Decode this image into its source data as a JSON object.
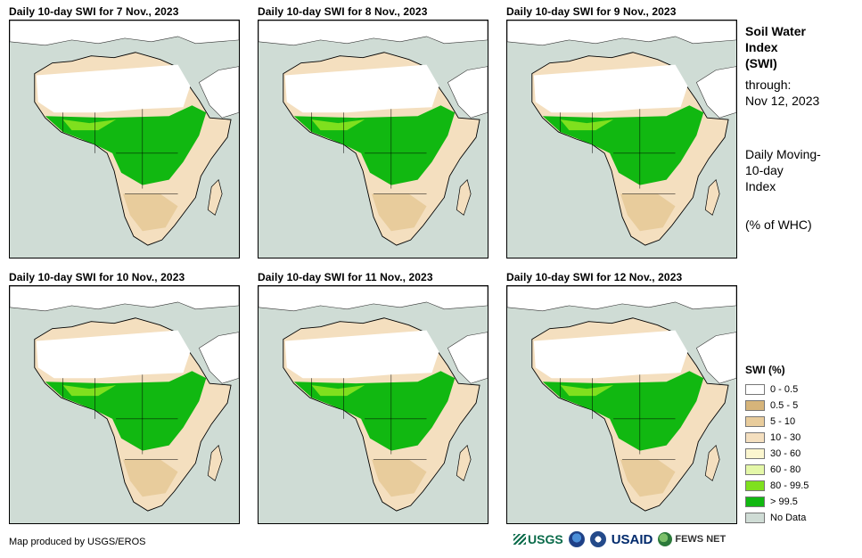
{
  "panels": [
    {
      "title": "Daily 10-day SWI for 7 Nov., 2023"
    },
    {
      "title": "Daily 10-day SWI for 8 Nov., 2023"
    },
    {
      "title": "Daily 10-day SWI for 9 Nov., 2023"
    },
    {
      "title": "Daily 10-day SWI for 10 Nov., 2023"
    },
    {
      "title": "Daily 10-day SWI for 11 Nov., 2023"
    },
    {
      "title": "Daily 10-day SWI for 12 Nov., 2023"
    }
  ],
  "side_info": {
    "title_line1": "Soil Water",
    "title_line2": "Index",
    "title_line3": "(SWI)",
    "through_label": "through:",
    "through_date": "Nov 12, 2023",
    "desc_line1": "Daily Moving-",
    "desc_line2": "10-day",
    "desc_line3": "Index",
    "units": "(% of WHC)"
  },
  "legend": {
    "title": "SWI (%)",
    "items": [
      {
        "label": "0 - 0.5",
        "color": "#ffffff"
      },
      {
        "label": "0.5 - 5",
        "color": "#d6b47a"
      },
      {
        "label": "5 - 10",
        "color": "#e8cc9c"
      },
      {
        "label": "10 - 30",
        "color": "#f4dfbf"
      },
      {
        "label": "30 - 60",
        "color": "#fbf6cf"
      },
      {
        "label": "60 - 80",
        "color": "#e4f7a8"
      },
      {
        "label": "80 - 99.5",
        "color": "#7fe01e"
      },
      {
        "label": "> 99.5",
        "color": "#11b811"
      },
      {
        "label": "No Data",
        "color": "#cfdcd5"
      }
    ]
  },
  "footer": {
    "credit": "Map produced by USGS/EROS"
  },
  "logos": {
    "usgs": "USGS",
    "usaid": "USAID",
    "fews": "FEWS NET"
  }
}
